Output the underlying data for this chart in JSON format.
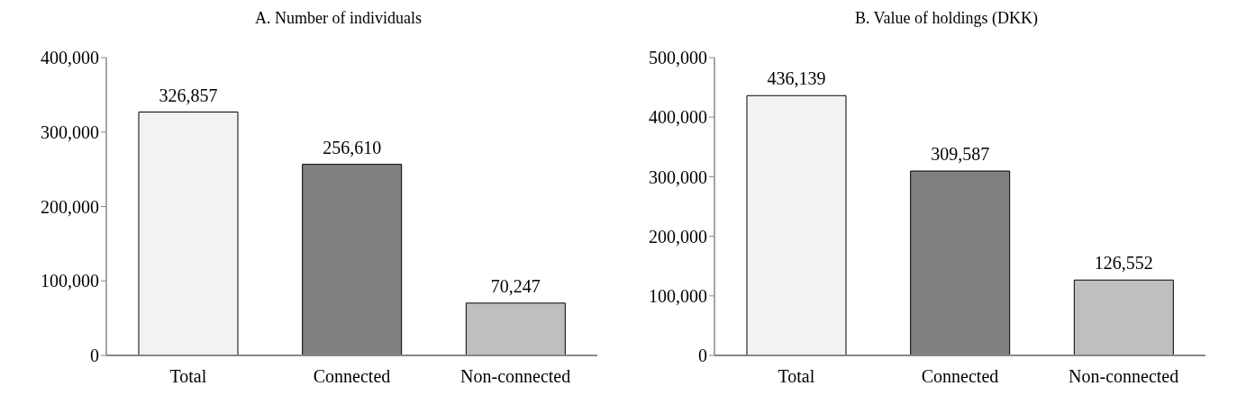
{
  "chart_data": [
    {
      "type": "bar",
      "title": "A. Number of individuals",
      "categories": [
        "Total",
        "Connected",
        "Non-connected"
      ],
      "values": [
        326857,
        256610,
        70247
      ],
      "value_labels": [
        "326,857",
        "256,610",
        "70,247"
      ],
      "colors": [
        "#f2f2f2",
        "#808080",
        "#bfbfbf"
      ],
      "ylim": [
        0,
        400000
      ],
      "yticks": [
        {
          "value": 0,
          "label": "0"
        },
        {
          "value": 100000,
          "label": "100,000"
        },
        {
          "value": 200000,
          "label": "200,000"
        },
        {
          "value": 300000,
          "label": "300,000"
        },
        {
          "value": 400000,
          "label": "400,000"
        }
      ],
      "grid": false,
      "legend": false
    },
    {
      "type": "bar",
      "title": "B. Value of holdings (DKK)",
      "categories": [
        "Total",
        "Connected",
        "Non-connected"
      ],
      "values": [
        436139,
        309587,
        126552
      ],
      "value_labels": [
        "436,139",
        "309,587",
        "126,552"
      ],
      "colors": [
        "#f2f2f2",
        "#808080",
        "#bfbfbf"
      ],
      "ylim": [
        0,
        500000
      ],
      "yticks": [
        {
          "value": 0,
          "label": "0"
        },
        {
          "value": 100000,
          "label": "100,000"
        },
        {
          "value": 200000,
          "label": "200,000"
        },
        {
          "value": 300000,
          "label": "300,000"
        },
        {
          "value": 400000,
          "label": "400,000"
        },
        {
          "value": 500000,
          "label": "500,000"
        }
      ],
      "grid": false,
      "legend": false
    }
  ]
}
